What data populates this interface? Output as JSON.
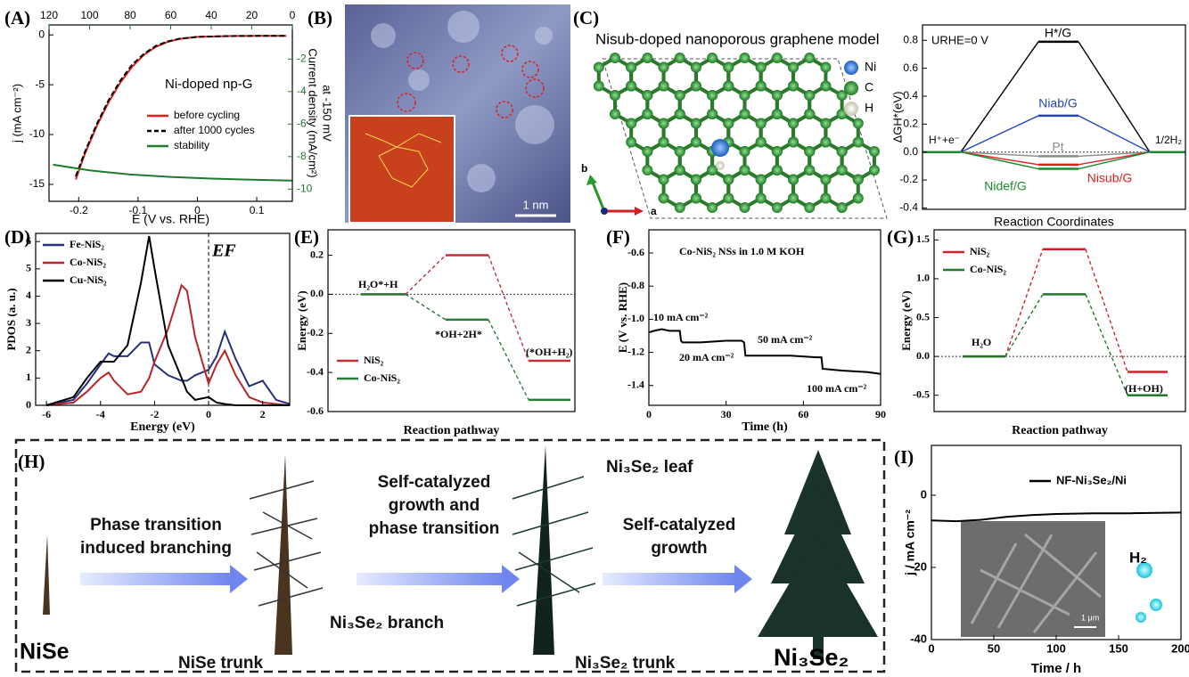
{
  "chart_data": [
    {
      "type": "line",
      "panel": "(A)",
      "annotations": [
        "Ni-doped np-G"
      ],
      "xlabel": "E (V vs. RHE)",
      "ylabel": "j (mA cm⁻²)",
      "y2label": [
        "Current density (mA/cm²)",
        "at -150 mV"
      ],
      "xlim": [
        -0.25,
        0.16
      ],
      "xticks": [
        -0.2,
        -0.1,
        0,
        0.1
      ],
      "ylim": [
        -16.7,
        1
      ],
      "yticks": [
        0,
        -5,
        -10,
        -15
      ],
      "x2lim": [
        120,
        0
      ],
      "x2ticks": [
        120,
        100,
        80,
        60,
        40,
        20,
        0
      ],
      "y2lim": [
        -10.75,
        0.1
      ],
      "y2ticks": [
        -2,
        -4,
        -6,
        -8,
        -10
      ],
      "series": [
        {
          "name": "before cycling",
          "color": "#e0201c",
          "x": [
            -0.205,
            -0.19,
            -0.17,
            -0.15,
            -0.13,
            -0.11,
            -0.09,
            -0.07,
            -0.05,
            -0.03,
            0,
            0.05,
            0.1,
            0.15
          ],
          "values": [
            -14.5,
            -12,
            -9.2,
            -6.8,
            -4.8,
            -3.2,
            -2.0,
            -1.2,
            -0.7,
            -0.4,
            -0.2,
            -0.12,
            -0.1,
            -0.1
          ]
        },
        {
          "name": "after 1000 cycles",
          "color": "#000000",
          "dash": true,
          "x": [
            -0.205,
            -0.19,
            -0.17,
            -0.15,
            -0.13,
            -0.11,
            -0.09,
            -0.07,
            -0.05,
            -0.03,
            0,
            0.05,
            0.1,
            0.15
          ],
          "values": [
            -14.2,
            -11.8,
            -9.0,
            -6.6,
            -4.6,
            -3.0,
            -1.9,
            -1.1,
            -0.65,
            -0.38,
            -0.2,
            -0.12,
            -0.1,
            -0.1
          ]
        },
        {
          "name": "stability",
          "color": "#1e7a2e",
          "axis": "y2",
          "xaxis": "x2",
          "x": [
            118,
            100,
            80,
            60,
            40,
            20,
            0
          ],
          "values": [
            -8.5,
            -8.85,
            -9.1,
            -9.25,
            -9.35,
            -9.42,
            -9.48
          ]
        }
      ]
    },
    {
      "type": "energy",
      "annotations": [
        "URHE=0 V"
      ],
      "ylabel": "ΔGH*(eV)",
      "xlabel": "Reaction Coordinates",
      "ylim": [
        -0.41,
        0.91
      ],
      "yticks": [
        -0.4,
        -0.2,
        {
          "value": 0,
          "label": "0.0"
        },
        0.2,
        0.4,
        0.6,
        0.8
      ],
      "categories": [
        "H⁺+e⁻",
        null,
        "1/2H₂"
      ],
      "zero_line": true,
      "dashed": false,
      "series": [
        {
          "name": "H*/G",
          "color": "#000000",
          "values": [
            0,
            0.79,
            0
          ]
        },
        {
          "name": "Niab/G",
          "color": "#2343c0",
          "values": [
            0,
            0.26,
            0
          ]
        },
        {
          "name": "Pt",
          "color": "#8a8a8a",
          "values": [
            0,
            -0.03,
            0
          ]
        },
        {
          "name": "Nisub/G",
          "color": "#e02020",
          "values": [
            0,
            -0.09,
            0
          ]
        },
        {
          "name": "Nidef/G",
          "color": "#1a8a2a",
          "values": [
            0,
            -0.12,
            0
          ]
        }
      ]
    },
    {
      "type": "line",
      "panel": "(D)",
      "annotations": [
        "EF"
      ],
      "xlabel": "Energy (eV)",
      "ylabel": "PDOS (a. u.)",
      "xlim": [
        -6.4,
        3
      ],
      "xticks": [
        -6,
        -4,
        -2,
        0,
        2
      ],
      "ylim": [
        0,
        6.3
      ],
      "yticks": [
        0,
        1,
        2,
        3,
        4,
        5,
        6
      ],
      "vline": 0,
      "x": [
        -6,
        -5,
        -4.5,
        -4,
        -3.7,
        -3.5,
        -3,
        -2.5,
        -2.2,
        -2,
        -1.5,
        -1,
        -0.8,
        -0.5,
        0,
        0.3,
        0.6,
        1,
        1.5,
        2,
        2.5,
        3
      ],
      "series": [
        {
          "name": "Fe-NiS₂",
          "color": "#27307a",
          "values": [
            0,
            0.2,
            0.8,
            1.5,
            1.9,
            1.8,
            1.8,
            2.3,
            2.3,
            1.5,
            1.1,
            0.9,
            0.9,
            1.1,
            1.3,
            1.8,
            2.7,
            1.7,
            0.7,
            0.9,
            0.2,
            0.05
          ]
        },
        {
          "name": "Co-NiS₂",
          "color": "#b8252a",
          "values": [
            0,
            0.1,
            0.5,
            1.0,
            1.2,
            0.9,
            0.4,
            0.5,
            1.0,
            1.6,
            2.8,
            4.4,
            4.2,
            2.5,
            0.8,
            1.5,
            2.0,
            1.1,
            0.3,
            0.1,
            0.05,
            0
          ]
        },
        {
          "name": "Cu-NiS₂",
          "color": "#000000",
          "values": [
            0,
            0.3,
            1.0,
            1.6,
            1.6,
            1.6,
            2.2,
            4.5,
            6.2,
            5.0,
            2.2,
            1.0,
            0.5,
            0.2,
            0.3,
            0.1,
            0.05,
            0,
            0,
            0,
            0,
            0
          ]
        }
      ]
    },
    {
      "type": "energy",
      "panel": "(E)",
      "ylabel": "Energy (eV)",
      "xlabel": "Reaction pathway",
      "ylim": [
        -0.6,
        0.33
      ],
      "yticks": [
        0.2,
        {
          "value": 0,
          "label": "0.0"
        },
        -0.2,
        -0.4,
        -0.6
      ],
      "categories": [
        "H₂O*+H",
        "*OH+2H*",
        "(*OH+H₂)"
      ],
      "zero_line": true,
      "dashed": true,
      "series": [
        {
          "name": "NiS₂",
          "color": "#c0303a",
          "values": [
            0,
            0.2,
            -0.34
          ]
        },
        {
          "name": "Co-NiS₂",
          "color": "#2a7a3a",
          "values": [
            0,
            -0.13,
            -0.54
          ]
        }
      ]
    },
    {
      "type": "line",
      "panel": "(F)",
      "xlabel": "Time (h)",
      "ylabel": "E (V vs. RHE)",
      "annotations": [
        "Co-NiS₂ NSs in 1.0 M KOH",
        "10 mA cm⁻²",
        "20 mA cm⁻²",
        "50 mA cm⁻²",
        "100 mA cm⁻²"
      ],
      "xlim": [
        0,
        90
      ],
      "xticks": [
        0,
        30,
        60,
        90
      ],
      "ylim": [
        -1.52,
        -0.46
      ],
      "yticks": [
        -0.6,
        -0.8,
        {
          "value": -1,
          "label": "-1.0"
        },
        -1.2,
        -1.4
      ],
      "color": "#000000",
      "x": [
        0,
        2,
        5,
        8,
        12,
        12.5,
        13,
        20,
        30,
        36,
        37,
        37.5,
        38,
        45,
        55,
        65,
        67,
        67.5,
        68,
        75,
        85,
        90
      ],
      "values": [
        -1.08,
        -1.07,
        -1.06,
        -1.07,
        -1.07,
        -1.13,
        -1.14,
        -1.14,
        -1.13,
        -1.13,
        -1.14,
        -1.22,
        -1.22,
        -1.22,
        -1.22,
        -1.23,
        -1.23,
        -1.3,
        -1.3,
        -1.31,
        -1.32,
        -1.33
      ]
    },
    {
      "type": "energy",
      "panel": "(G)",
      "ylabel": "Energy (eV)",
      "xlabel": "Reaction pathway",
      "ylim": [
        -0.71,
        1.63
      ],
      "yticks": [
        1.5,
        {
          "value": 1,
          "label": "1.0"
        },
        0.5,
        {
          "value": 0,
          "label": "0.0"
        },
        -0.5
      ],
      "categories": [
        "H₂O",
        null,
        "(H+OH)"
      ],
      "zero_line": true,
      "dashed": true,
      "series": [
        {
          "name": "NiS₂",
          "color": "#d0202a",
          "values": [
            0,
            1.38,
            -0.2
          ]
        },
        {
          "name": "Co-NiS₂",
          "color": "#1f7a2a",
          "values": [
            0,
            0.8,
            -0.5
          ]
        }
      ]
    },
    {
      "type": "line",
      "panel": "(I)",
      "xlabel": "Time / h",
      "ylabel": "j / mA cm⁻²",
      "annotations": [
        "1 μm",
        "H₂"
      ],
      "xlim": [
        0,
        200
      ],
      "xticks": [
        0,
        50,
        100,
        150,
        200
      ],
      "ylim": [
        -40,
        13.8
      ],
      "yticks": [
        0,
        -20,
        -40
      ],
      "series": [
        {
          "name": "NF-Ni₃Se₂/Ni",
          "color": "#000000",
          "x": [
            0,
            20,
            40,
            60,
            80,
            100,
            130,
            160,
            200
          ],
          "values": [
            -7,
            -7.2,
            -6.8,
            -6,
            -5.5,
            -5.2,
            -5,
            -5,
            -4.8
          ]
        }
      ]
    }
  ],
  "image_b": {
    "panel": "(B)",
    "scale_bar": "1 nm"
  },
  "model_c": {
    "panel": "(C)",
    "title": "Nisub-doped nanoporous graphene model",
    "legend": [
      "Ni",
      "C",
      "H"
    ],
    "axes": [
      "a",
      "b"
    ]
  },
  "diagram_h": {
    "panel": "(H)",
    "start": "NiSe",
    "steps": [
      [
        "Phase transition",
        "induced branching"
      ],
      [
        "Self-catalyzed",
        "growth and",
        "phase transition"
      ],
      [
        "Self-catalyzed",
        "growth"
      ]
    ],
    "labels": [
      "NiSe trunk",
      "Ni₃Se₂ branch",
      "Ni₃Se₂ leaf",
      "Ni₃Se₂ trunk"
    ],
    "end": "Ni₃Se₂"
  }
}
